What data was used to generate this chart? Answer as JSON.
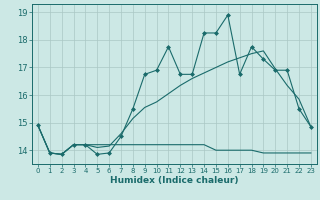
{
  "xlabel": "Humidex (Indice chaleur)",
  "background_color": "#cce8e5",
  "line_color": "#1a6b6b",
  "grid_color": "#aac8c5",
  "xlim": [
    -0.5,
    23.5
  ],
  "ylim": [
    13.5,
    19.3
  ],
  "xticks": [
    0,
    1,
    2,
    3,
    4,
    5,
    6,
    7,
    8,
    9,
    10,
    11,
    12,
    13,
    14,
    15,
    16,
    17,
    18,
    19,
    20,
    21,
    22,
    23
  ],
  "yticks": [
    14,
    15,
    16,
    17,
    18,
    19
  ],
  "line1_x": [
    0,
    1,
    2,
    3,
    4,
    5,
    6,
    7,
    8,
    9,
    10,
    11,
    12,
    13,
    14,
    15,
    16,
    17,
    18,
    19,
    20,
    21,
    22,
    23
  ],
  "line1_y": [
    14.9,
    13.9,
    13.85,
    14.2,
    14.2,
    13.85,
    13.9,
    14.5,
    15.5,
    16.75,
    16.9,
    17.75,
    16.75,
    16.75,
    18.25,
    18.25,
    18.9,
    16.75,
    17.75,
    17.3,
    16.9,
    16.9,
    15.5,
    14.85
  ],
  "line2_x": [
    0,
    1,
    2,
    3,
    4,
    5,
    6,
    7,
    8,
    9,
    10,
    11,
    12,
    13,
    14,
    15,
    16,
    17,
    18,
    19,
    20,
    21,
    22,
    23
  ],
  "line2_y": [
    14.9,
    13.9,
    13.85,
    14.2,
    14.2,
    14.2,
    14.2,
    14.2,
    14.2,
    14.2,
    14.2,
    14.2,
    14.2,
    14.2,
    14.2,
    14.0,
    14.0,
    14.0,
    14.0,
    13.9,
    13.9,
    13.9,
    13.9,
    13.9
  ],
  "line3_x": [
    0,
    1,
    2,
    3,
    4,
    5,
    6,
    7,
    8,
    9,
    10,
    11,
    12,
    13,
    14,
    15,
    16,
    17,
    18,
    19,
    20,
    21,
    22,
    23
  ],
  "line3_y": [
    14.9,
    13.9,
    13.85,
    14.2,
    14.2,
    14.1,
    14.15,
    14.6,
    15.15,
    15.55,
    15.75,
    16.05,
    16.35,
    16.6,
    16.8,
    17.0,
    17.2,
    17.35,
    17.5,
    17.6,
    16.95,
    16.35,
    15.85,
    14.85
  ],
  "marker_style": "D",
  "marker_size": 2.0,
  "line_width": 0.8
}
